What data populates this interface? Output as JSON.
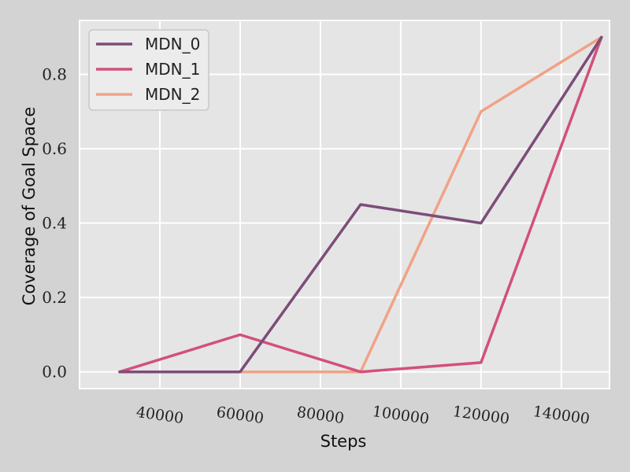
{
  "chart_data": {
    "type": "line",
    "xlabel": "Steps",
    "ylabel": "Coverage of Goal Space",
    "xlim": [
      20000,
      152000
    ],
    "ylim": [
      -0.045,
      0.945
    ],
    "x_ticks": [
      40000,
      60000,
      80000,
      100000,
      120000,
      140000
    ],
    "y_ticks": [
      0.0,
      0.2,
      0.4,
      0.6,
      0.8
    ],
    "y_tick_labels": [
      "0.0",
      "0.2",
      "0.4",
      "0.6",
      "0.8"
    ],
    "x": [
      30000,
      60000,
      90000,
      120000,
      150000
    ],
    "grid": true,
    "legend_position": "top-left",
    "series": [
      {
        "name": "MDN_0",
        "values": [
          0.0,
          0.0,
          0.45,
          0.4,
          0.9
        ],
        "color": "#7c4d79"
      },
      {
        "name": "MDN_1",
        "values": [
          0.0,
          0.1,
          0.0,
          0.025,
          0.9
        ],
        "color": "#d1517a"
      },
      {
        "name": "MDN_2",
        "values": [
          0.0,
          0.0,
          0.0,
          0.7,
          0.9
        ],
        "color": "#f0a386"
      }
    ]
  }
}
